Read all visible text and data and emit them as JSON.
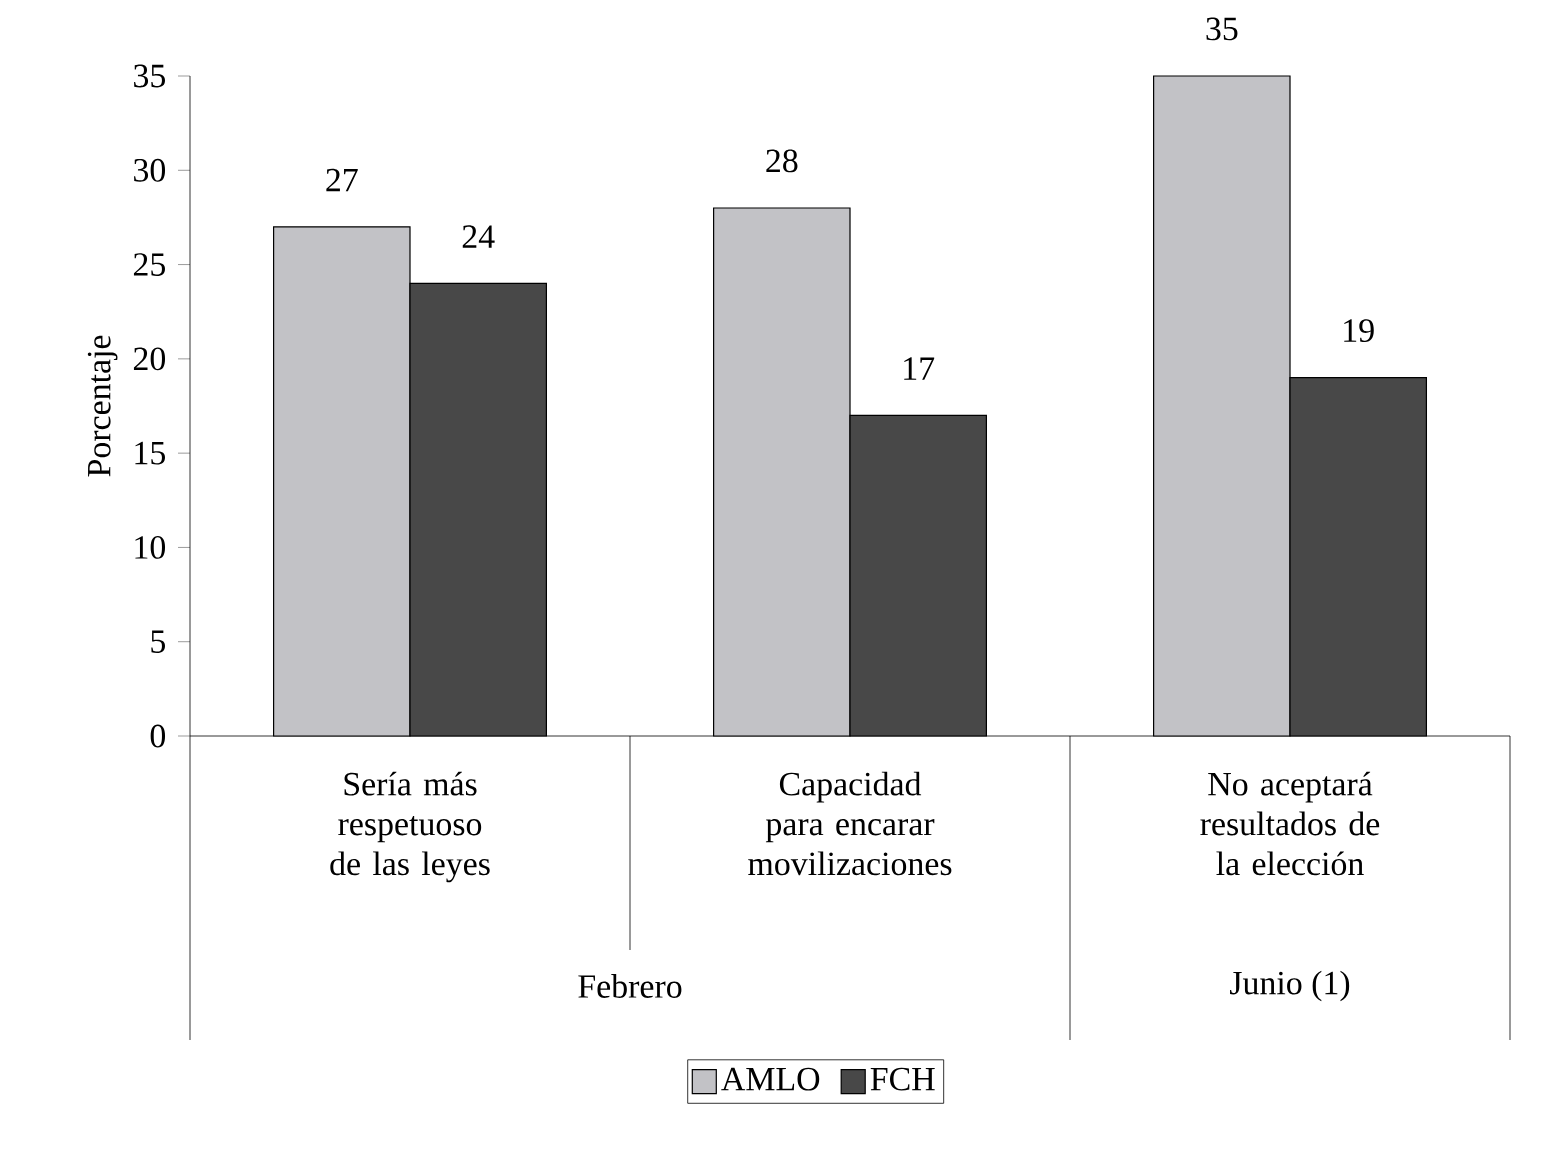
{
  "chart_data": {
    "type": "bar",
    "ylabel": "Porcentaje",
    "categories": [
      "Sería más respetuoso de las leyes",
      "Capacidad para encarar movilizaciones",
      "No aceptará resultados de la elección"
    ],
    "series": [
      {
        "name": "AMLO",
        "color": "#c2c2c6",
        "values": [
          27,
          28,
          35
        ]
      },
      {
        "name": "FCH",
        "color": "#484848",
        "values": [
          24,
          17,
          19
        ]
      }
    ],
    "ylim": [
      0,
      35
    ],
    "yticks": [
      0,
      5,
      10,
      15,
      20,
      25,
      30,
      35
    ],
    "data_labels": true,
    "legend": "bottom",
    "grid": false,
    "annotations": [
      "Febrero",
      "Junio (1)"
    ]
  }
}
